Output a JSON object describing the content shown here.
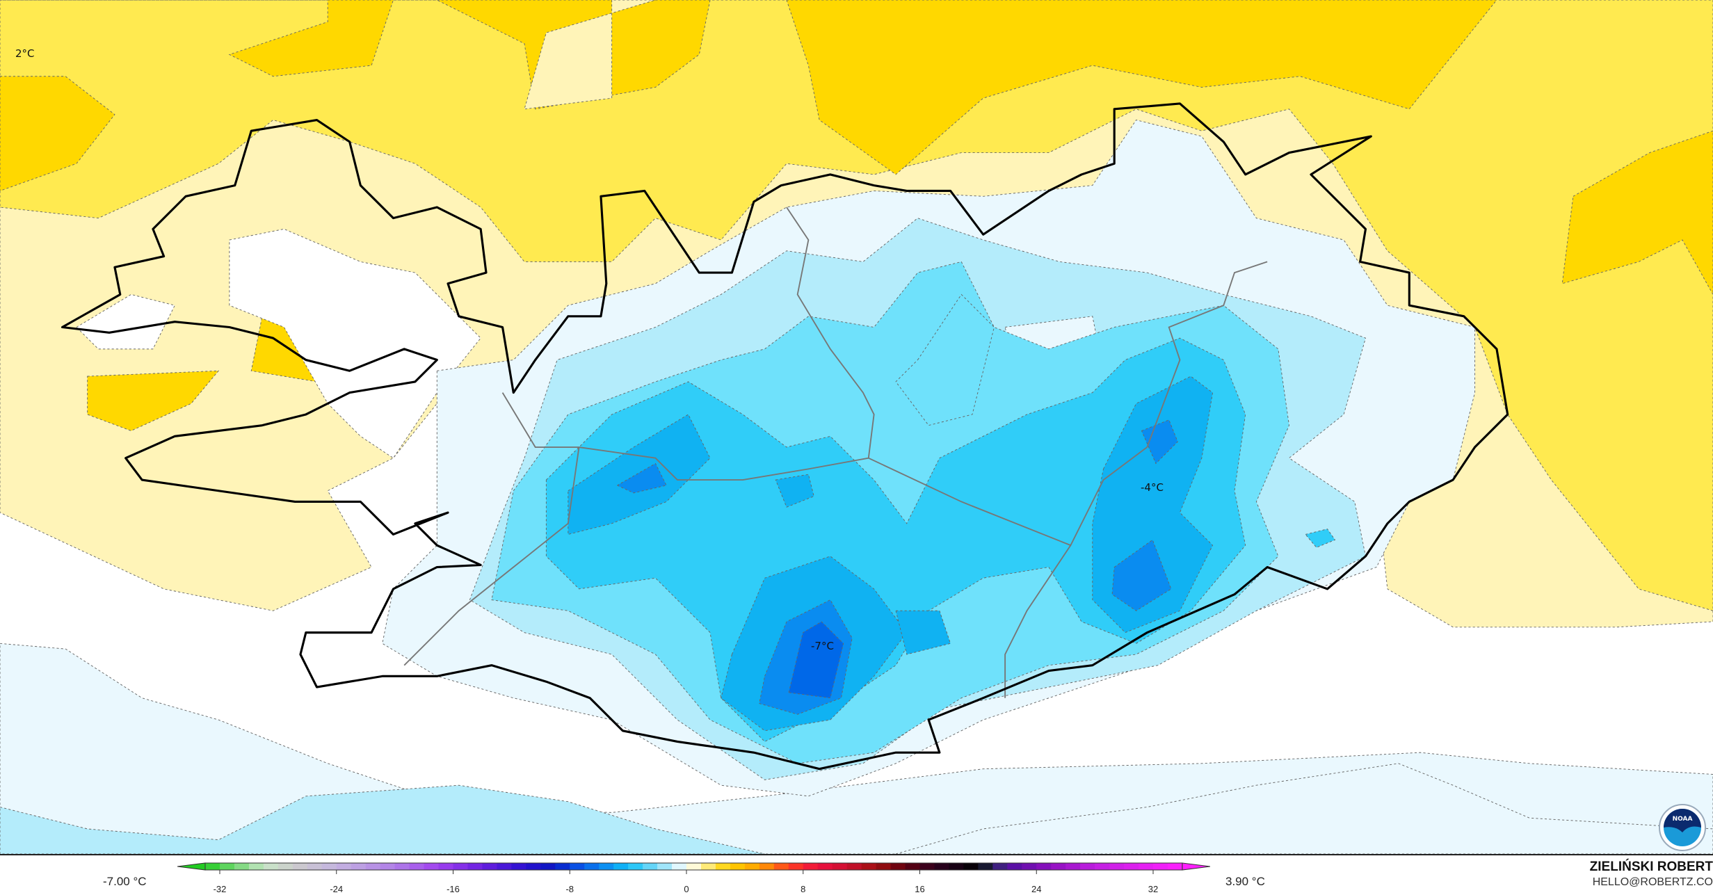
{
  "map": {
    "labels": [
      {
        "text": "2°C",
        "name": "max-label-2c"
      },
      {
        "text": "-4°C",
        "name": "min-label-east"
      },
      {
        "text": "-7°C",
        "name": "min-label-south"
      }
    ],
    "fill_colors": {
      "yellow_dark": "#ffd800",
      "yellow_mid": "#ffea50",
      "yellow_pale": "#fff4b8",
      "white": "#ffffff",
      "blue_1": "#eaf8fe",
      "blue_2": "#b4ecfb",
      "blue_3": "#6fe1fb",
      "blue_4": "#30cdf8",
      "blue_5": "#10b2f2",
      "blue_6": "#0a8cf0",
      "blue_7": "#0068e8"
    }
  },
  "legend": {
    "min_label": "-7.00 °C",
    "max_label": "3.90 °C",
    "ticks": [
      "-32",
      "-24",
      "-16",
      "-8",
      "0",
      "8",
      "16",
      "24",
      "32"
    ],
    "tick_values": [
      -32,
      -24,
      -16,
      -8,
      0,
      8,
      16,
      24,
      32
    ],
    "range": [
      -33,
      34
    ],
    "color_stops": [
      [
        -33,
        "#22cc22"
      ],
      [
        -30,
        "#99dd99"
      ],
      [
        -29,
        "#c8e6c8"
      ],
      [
        -27,
        "#cccccc"
      ],
      [
        -24,
        "#c4b4e0"
      ],
      [
        -20,
        "#b07ee8"
      ],
      [
        -17,
        "#a040f0"
      ],
      [
        -14,
        "#6a20e0"
      ],
      [
        -11,
        "#2a10d0"
      ],
      [
        -9,
        "#0818c0"
      ],
      [
        -8,
        "#0a40e0"
      ],
      [
        -6,
        "#0a80f0"
      ],
      [
        -4,
        "#10c0f8"
      ],
      [
        -2,
        "#80dcf8"
      ],
      [
        -1,
        "#c0eefc"
      ],
      [
        0,
        "#ffffff"
      ],
      [
        1,
        "#fff4b0"
      ],
      [
        2,
        "#ffe040"
      ],
      [
        3,
        "#ffd000"
      ],
      [
        5,
        "#ffa000"
      ],
      [
        6,
        "#ff7010"
      ],
      [
        7,
        "#ff4020"
      ],
      [
        9,
        "#ee1040"
      ],
      [
        11,
        "#cc1030"
      ],
      [
        13,
        "#a01010"
      ],
      [
        15,
        "#600010"
      ],
      [
        17,
        "#300020"
      ],
      [
        19,
        "#100010"
      ],
      [
        20,
        "#000000"
      ],
      [
        21,
        "#303060"
      ],
      [
        22,
        "#5010a0"
      ],
      [
        25,
        "#9010c0"
      ],
      [
        28,
        "#c020e0"
      ],
      [
        31,
        "#e020f0"
      ],
      [
        34,
        "#ff20ff"
      ]
    ]
  },
  "attribution": {
    "name": "ZIELIŃSKI ROBERT",
    "email": "HELLO@ROBERTZ.CO"
  },
  "logo": {
    "text": "NOAA"
  }
}
